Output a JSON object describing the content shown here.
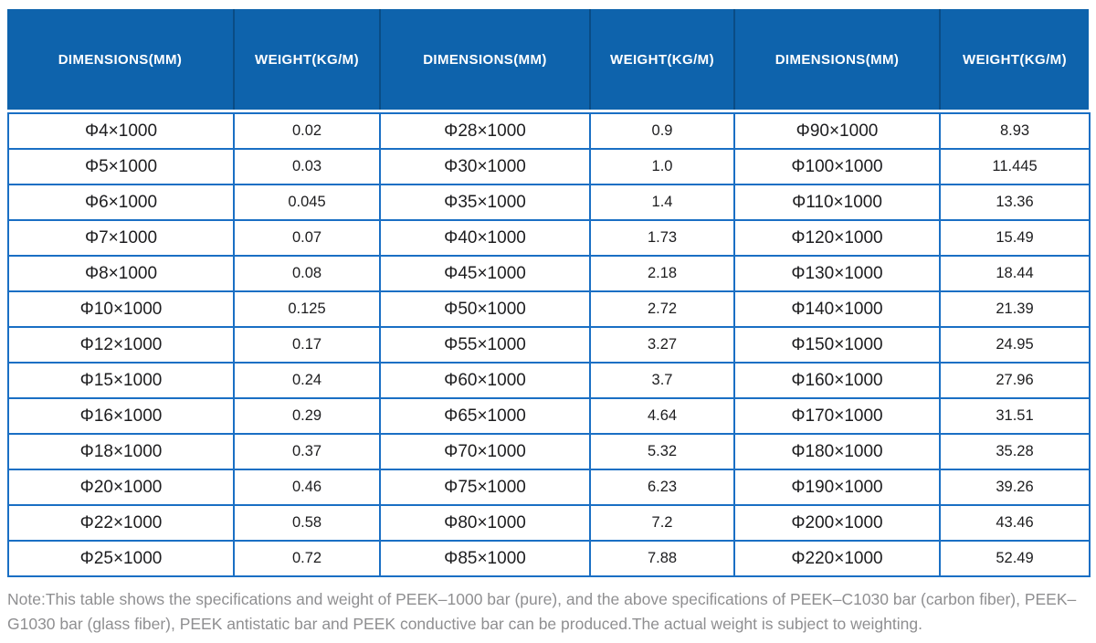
{
  "table": {
    "columns": [
      "DIMENSIONS(MM)",
      "WEIGHT(KG/M)",
      "DIMENSIONS(MM)",
      "WEIGHT(KG/M)",
      "DIMENSIONS(MM)",
      "WEIGHT(KG/M)"
    ],
    "rows": [
      [
        "Φ4×1000",
        "0.02",
        "Φ28×1000",
        "0.9",
        "Φ90×1000",
        "8.93"
      ],
      [
        "Φ5×1000",
        "0.03",
        "Φ30×1000",
        "1.0",
        "Φ100×1000",
        "11.445"
      ],
      [
        "Φ6×1000",
        "0.045",
        "Φ35×1000",
        "1.4",
        "Φ110×1000",
        "13.36"
      ],
      [
        "Φ7×1000",
        "0.07",
        "Φ40×1000",
        "1.73",
        "Φ120×1000",
        "15.49"
      ],
      [
        "Φ8×1000",
        "0.08",
        "Φ45×1000",
        "2.18",
        "Φ130×1000",
        "18.44"
      ],
      [
        "Φ10×1000",
        "0.125",
        "Φ50×1000",
        "2.72",
        "Φ140×1000",
        "21.39"
      ],
      [
        "Φ12×1000",
        "0.17",
        "Φ55×1000",
        "3.27",
        "Φ150×1000",
        "24.95"
      ],
      [
        "Φ15×1000",
        "0.24",
        "Φ60×1000",
        "3.7",
        "Φ160×1000",
        "27.96"
      ],
      [
        "Φ16×1000",
        "0.29",
        "Φ65×1000",
        "4.64",
        "Φ170×1000",
        "31.51"
      ],
      [
        "Φ18×1000",
        "0.37",
        "Φ70×1000",
        "5.32",
        "Φ180×1000",
        "35.28"
      ],
      [
        "Φ20×1000",
        "0.46",
        "Φ75×1000",
        "6.23",
        "Φ190×1000",
        "39.26"
      ],
      [
        "Φ22×1000",
        "0.58",
        "Φ80×1000",
        "7.2",
        "Φ200×1000",
        "43.46"
      ],
      [
        "Φ25×1000",
        "0.72",
        "Φ85×1000",
        "7.88",
        "Φ220×1000",
        "52.49"
      ]
    ]
  },
  "note": {
    "text": "Note:This table shows the specifications and weight of PEEK–1000 bar (pure), and the above specifications of PEEK–C1030 bar (carbon fiber), PEEK–G1030 bar (glass fiber), PEEK antistatic bar and PEEK conductive bar can be produced.The actual weight is subject to weighting."
  },
  "colors": {
    "header_bg": "#0e63ac",
    "header_divider": "#0a4c85",
    "header_text": "#ffffff",
    "body_border": "#1a6fc4",
    "cell_text": "#1d1d1f",
    "note_text": "#8f8f91"
  }
}
